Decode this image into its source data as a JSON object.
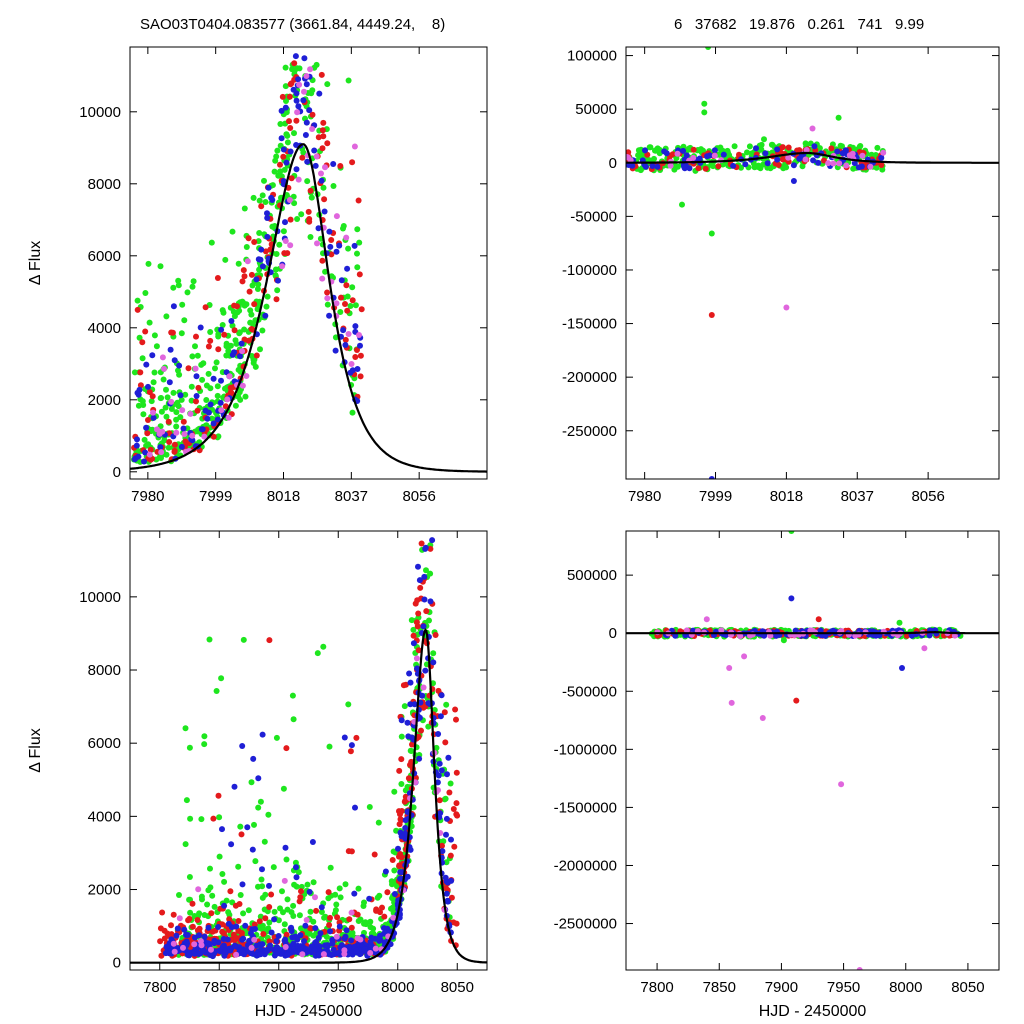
{
  "header": {
    "left": "SAO03T0404.083577 (3661.84, 4449.24,    8)",
    "right": "6   37682   19.876   0.261   741   9.99"
  },
  "colors": {
    "red": "#e41a1c",
    "blue": "#1f1fd6",
    "green": "#1ee61e",
    "pink": "#e066dd",
    "fit": "#000000"
  },
  "chart_data": [
    {
      "type": "scatter",
      "panel": "top-left",
      "xlabel": "",
      "ylabel": "Δ Flux",
      "xlim": [
        7975,
        8075
      ],
      "ylim": [
        -200,
        11800
      ],
      "xticks": [
        7980,
        7999,
        8018,
        8037,
        8056
      ],
      "yticks": [
        0,
        2000,
        4000,
        6000,
        8000,
        10000
      ],
      "fit": {
        "peak_x": 8023.5,
        "peak_y": 9100,
        "rise_scale": 9,
        "fall_scale": 6.5
      },
      "series": [
        {
          "color_key": "green",
          "clusters": [
            {
              "x": [
                7976,
                8020
              ],
              "frac": [
                0.04,
                0.65
              ],
              "n": 380
            },
            {
              "x": [
                8018,
                8040
              ],
              "frac": [
                0.15,
                1.05
              ],
              "n": 90
            }
          ]
        },
        {
          "color_key": "red",
          "clusters": [
            {
              "x": [
                7976,
                8020
              ],
              "frac": [
                0.03,
                0.55
              ],
              "n": 110
            },
            {
              "x": [
                8018,
                8040
              ],
              "frac": [
                0.2,
                1.1
              ],
              "n": 55
            }
          ]
        },
        {
          "color_key": "blue",
          "clusters": [
            {
              "x": [
                7976,
                8020
              ],
              "frac": [
                0.02,
                0.45
              ],
              "n": 90
            },
            {
              "x": [
                8018,
                8040
              ],
              "frac": [
                0.2,
                1.05
              ],
              "n": 55
            }
          ]
        },
        {
          "color_key": "pink",
          "clusters": [
            {
              "x": [
                7976,
                8020
              ],
              "frac": [
                0.02,
                0.4
              ],
              "n": 30
            },
            {
              "x": [
                8018,
                8040
              ],
              "frac": [
                0.1,
                0.9
              ],
              "n": 25
            }
          ]
        }
      ]
    },
    {
      "type": "scatter",
      "panel": "top-right",
      "xlabel": "",
      "ylabel": "",
      "xlim": [
        7975,
        8075
      ],
      "ylim": [
        -295000,
        108000
      ],
      "xticks": [
        7980,
        7999,
        8018,
        8037,
        8056
      ],
      "yticks": [
        100000,
        50000,
        0,
        -50000,
        -100000,
        -150000,
        -200000,
        -250000
      ],
      "fit": {
        "peak_x": 8023.5,
        "peak_y": 9100,
        "rise_scale": 9,
        "fall_scale": 6.5
      },
      "series": [
        {
          "color_key": "green",
          "clusters": [
            {
              "x": [
                7975,
                8044
              ],
              "y": [
                -8000,
                15000
              ],
              "n": 260
            }
          ],
          "outliers": [
            [
              7997,
              108000
            ],
            [
              7996,
              55000
            ],
            [
              7996,
              47000
            ],
            [
              7998,
              -66000
            ],
            [
              7990,
              -39000
            ],
            [
              8032,
              42000
            ],
            [
              8012,
              22000
            ]
          ]
        },
        {
          "color_key": "red",
          "clusters": [
            {
              "x": [
                7975,
                8044
              ],
              "y": [
                -6000,
                12000
              ],
              "n": 80
            }
          ],
          "outliers": [
            [
              7998,
              -142000
            ]
          ]
        },
        {
          "color_key": "blue",
          "clusters": [
            {
              "x": [
                7975,
                8044
              ],
              "y": [
                -6000,
                12000
              ],
              "n": 70
            }
          ],
          "outliers": [
            [
              7998,
              -295000
            ],
            [
              8020,
              -17000
            ]
          ]
        },
        {
          "color_key": "pink",
          "clusters": [
            {
              "x": [
                7975,
                8044
              ],
              "y": [
                -5000,
                10000
              ],
              "n": 25
            }
          ],
          "outliers": [
            [
              8018,
              -135000
            ],
            [
              8025,
              32000
            ]
          ]
        }
      ]
    },
    {
      "type": "scatter",
      "panel": "bottom-left",
      "xlabel": "HJD - 2450000",
      "ylabel": "Δ Flux",
      "xlim": [
        7775,
        8075
      ],
      "ylim": [
        -200,
        11800
      ],
      "xticks": [
        7800,
        7850,
        7900,
        7950,
        8000,
        8050
      ],
      "yticks": [
        0,
        2000,
        4000,
        6000,
        8000,
        10000
      ],
      "fit": {
        "peak_x": 8023.5,
        "peak_y": 9100,
        "rise_scale": 9,
        "fall_scale": 6.5
      },
      "series": [
        {
          "color_key": "green",
          "clusters": [
            {
              "x": [
                7815,
                8020
              ],
              "frac": [
                0.0,
                0.22
              ],
              "n": 420
            },
            {
              "x": [
                7820,
                8010
              ],
              "frac": [
                0.1,
                0.9
              ],
              "n": 120
            },
            {
              "x": [
                7995,
                8045
              ],
              "frac": [
                0.1,
                0.85
              ],
              "n": 120
            }
          ]
        },
        {
          "color_key": "red",
          "clusters": [
            {
              "x": [
                7800,
                7880
              ],
              "frac": [
                0.0,
                0.14
              ],
              "n": 200
            },
            {
              "x": [
                7880,
                8020
              ],
              "frac": [
                0.0,
                0.18
              ],
              "n": 120
            },
            {
              "x": [
                8000,
                8050
              ],
              "frac": [
                0.1,
                1.0
              ],
              "n": 110
            },
            {
              "x": [
                7830,
                8000
              ],
              "frac": [
                0.2,
                0.85
              ],
              "n": 25
            }
          ]
        },
        {
          "color_key": "blue",
          "clusters": [
            {
              "x": [
                7805,
                8020
              ],
              "frac": [
                0.0,
                0.08
              ],
              "n": 360
            },
            {
              "x": [
                8000,
                8045
              ],
              "frac": [
                0.05,
                0.95
              ],
              "n": 90
            },
            {
              "x": [
                7840,
                8000
              ],
              "frac": [
                0.1,
                0.75
              ],
              "n": 40
            }
          ]
        },
        {
          "color_key": "pink",
          "clusters": [
            {
              "x": [
                7810,
                8045
              ],
              "frac": [
                0.0,
                0.25
              ],
              "n": 40
            }
          ]
        }
      ]
    },
    {
      "type": "scatter",
      "panel": "bottom-right",
      "xlabel": "HJD - 2450000",
      "ylabel": "",
      "xlim": [
        7775,
        8075
      ],
      "ylim": [
        -2900000,
        880000
      ],
      "xticks": [
        7800,
        7850,
        7900,
        7950,
        8000,
        8050
      ],
      "yticks": [
        500000,
        0,
        -500000,
        -1000000,
        -1500000,
        -2000000,
        -2500000
      ],
      "fit": {
        "peak_x": 8023.5,
        "peak_y": 9100,
        "rise_scale": 9,
        "fall_scale": 6.5
      },
      "series": [
        {
          "color_key": "green",
          "clusters": [
            {
              "x": [
                7795,
                8045
              ],
              "y": [
                -30000,
                30000
              ],
              "n": 320
            }
          ],
          "outliers": [
            [
              7908,
              880000
            ],
            [
              7902,
              -60000
            ],
            [
              7995,
              90000
            ]
          ]
        },
        {
          "color_key": "red",
          "clusters": [
            {
              "x": [
                7800,
                8040
              ],
              "y": [
                -25000,
                25000
              ],
              "n": 100
            }
          ],
          "outliers": [
            [
              7912,
              -580000
            ],
            [
              7930,
              120000
            ]
          ]
        },
        {
          "color_key": "blue",
          "clusters": [
            {
              "x": [
                7800,
                8045
              ],
              "y": [
                -25000,
                25000
              ],
              "n": 110
            }
          ],
          "outliers": [
            [
              7908,
              300000
            ],
            [
              7997,
              -300000
            ]
          ]
        },
        {
          "color_key": "pink",
          "clusters": [
            {
              "x": [
                7800,
                8045
              ],
              "y": [
                -25000,
                25000
              ],
              "n": 35
            }
          ],
          "outliers": [
            [
              7860,
              -600000
            ],
            [
              7885,
              -730000
            ],
            [
              7948,
              -1300000
            ],
            [
              7963,
              -2900000
            ],
            [
              7858,
              -300000
            ],
            [
              7840,
              120000
            ],
            [
              8015,
              -130000
            ],
            [
              7870,
              -200000
            ]
          ]
        }
      ]
    }
  ]
}
